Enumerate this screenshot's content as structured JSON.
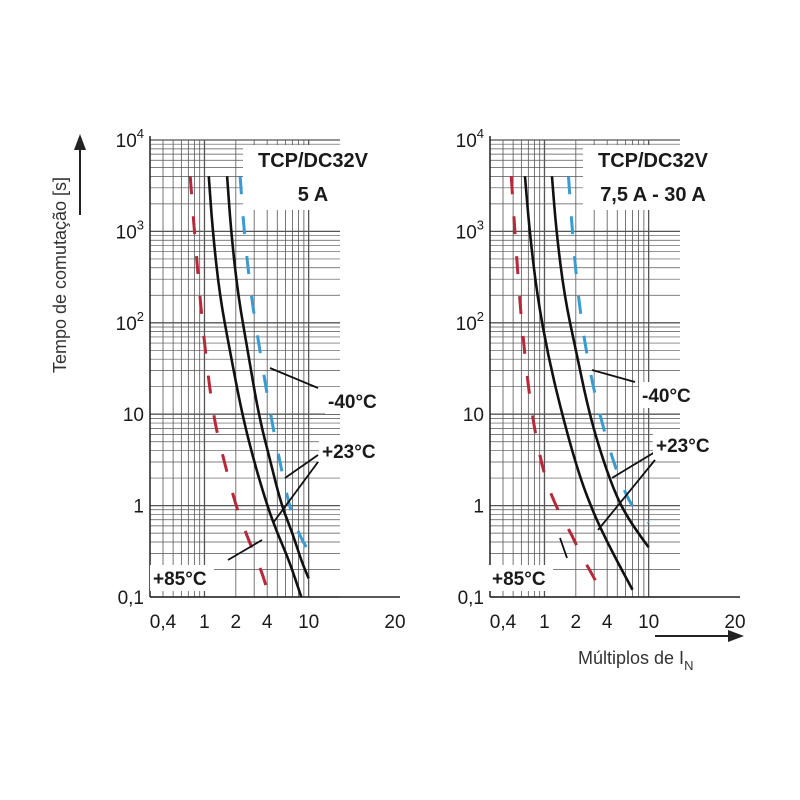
{
  "chart_data": [
    {
      "type": "line",
      "title": "TCP/DC32V",
      "subtitle": "5 A",
      "ylabel": "Tempo de comutação [s]",
      "x_scale": "log",
      "y_scale": "log",
      "xlim": [
        0.3,
        20
      ],
      "ylim": [
        0.1,
        10000
      ],
      "x_ticks": [
        "0,4",
        "1",
        "2",
        "4",
        "10",
        "20"
      ],
      "y_ticks": [
        "0,1",
        "1",
        "10",
        "10²",
        "10³",
        "10⁴"
      ],
      "grid": true,
      "series": [
        {
          "label": "+85°C",
          "color": "#b5293a",
          "dash": true,
          "x": [
            0.73,
            0.8,
            0.95,
            1.2,
            1.55,
            2.0,
            2.5,
            3.0,
            3.6,
            4.2
          ],
          "y": [
            4000,
            1000,
            100,
            10,
            3,
            1,
            0.5,
            0.3,
            0.18,
            0.1
          ]
        },
        {
          "label": "+23°C",
          "color": "#111111",
          "dash": false,
          "x": [
            1.1,
            1.2,
            1.4,
            1.75,
            2.3,
            3.0,
            4.0,
            5.0,
            6.5,
            8.5
          ],
          "y": [
            4000,
            1000,
            200,
            50,
            10,
            3,
            1,
            0.5,
            0.25,
            0.1
          ]
        },
        {
          "label": "+23°C",
          "color": "#111111",
          "dash": false,
          "x": [
            1.65,
            1.8,
            2.1,
            2.6,
            3.3,
            4.3,
            5.5,
            7.0,
            8.5,
            10.0
          ],
          "y": [
            4000,
            1000,
            200,
            50,
            10,
            3,
            1,
            0.5,
            0.25,
            0.16
          ]
        },
        {
          "label": "-40°C",
          "color": "#3a9bd1",
          "dash": true,
          "x": [
            2.2,
            2.4,
            2.8,
            3.4,
            4.3,
            5.3,
            6.5,
            8.0,
            9.5,
            10.2
          ],
          "y": [
            4000,
            1000,
            200,
            50,
            10,
            3,
            1,
            0.5,
            0.35,
            0.3
          ]
        }
      ],
      "annotations": {
        "t40": "-40°C",
        "t23": "+23°C",
        "t85": "+85°C"
      }
    },
    {
      "type": "line",
      "title": "TCP/DC32V",
      "subtitle": "7,5 A - 30 A",
      "xlabel": "Múltiplos de I",
      "xlabel_sub": "N",
      "x_scale": "log",
      "y_scale": "log",
      "xlim": [
        0.3,
        20
      ],
      "ylim": [
        0.1,
        10000
      ],
      "x_ticks": [
        "0,4",
        "1",
        "2",
        "4",
        "10",
        "20"
      ],
      "y_ticks": [
        "0,1",
        "1",
        "10",
        "10²",
        "10³",
        "10⁴"
      ],
      "grid": true,
      "series": [
        {
          "label": "+85°C",
          "color": "#b5293a",
          "dash": true,
          "x": [
            0.48,
            0.52,
            0.6,
            0.75,
            1.0,
            1.4,
            1.8,
            2.2,
            2.7,
            3.1
          ],
          "y": [
            4000,
            1000,
            100,
            10,
            2,
            0.8,
            0.5,
            0.3,
            0.2,
            0.15
          ]
        },
        {
          "label": "+23°C",
          "color": "#111111",
          "dash": false,
          "x": [
            0.65,
            0.72,
            0.85,
            1.1,
            1.55,
            2.2,
            3.0,
            4.0,
            5.5,
            7.0
          ],
          "y": [
            4000,
            1000,
            200,
            40,
            8,
            2,
            0.8,
            0.4,
            0.2,
            0.12
          ]
        },
        {
          "label": "+23°C",
          "color": "#111111",
          "dash": false,
          "x": [
            1.18,
            1.3,
            1.55,
            2.0,
            2.7,
            3.7,
            5.0,
            6.5,
            8.5,
            10.0
          ],
          "y": [
            4000,
            1000,
            200,
            50,
            10,
            3,
            1.2,
            0.7,
            0.45,
            0.35
          ]
        },
        {
          "label": "-40°C",
          "color": "#3a9bd1",
          "dash": true,
          "x": [
            1.7,
            1.85,
            2.1,
            2.5,
            3.1,
            4.0,
            5.2,
            6.8,
            8.5,
            10.0
          ],
          "y": [
            4000,
            1000,
            200,
            50,
            15,
            5,
            2,
            1,
            0.8,
            0.65
          ]
        }
      ],
      "annotations": {
        "t40": "-40°C",
        "t23": "+23°C",
        "t85": "+85°C"
      }
    }
  ]
}
